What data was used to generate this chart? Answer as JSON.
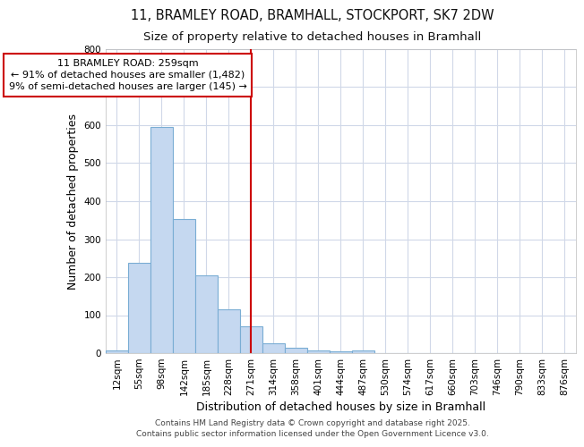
{
  "title_line1": "11, BRAMLEY ROAD, BRAMHALL, STOCKPORT, SK7 2DW",
  "title_line2": "Size of property relative to detached houses in Bramhall",
  "xlabel": "Distribution of detached houses by size in Bramhall",
  "ylabel": "Number of detached properties",
  "bin_labels": [
    "12sqm",
    "55sqm",
    "98sqm",
    "142sqm",
    "185sqm",
    "228sqm",
    "271sqm",
    "314sqm",
    "358sqm",
    "401sqm",
    "444sqm",
    "487sqm",
    "530sqm",
    "574sqm",
    "617sqm",
    "660sqm",
    "703sqm",
    "746sqm",
    "790sqm",
    "833sqm",
    "876sqm"
  ],
  "bar_values": [
    8,
    238,
    595,
    352,
    205,
    115,
    70,
    27,
    13,
    6,
    5,
    8,
    0,
    0,
    0,
    0,
    0,
    0,
    0,
    0,
    0
  ],
  "bar_color": "#c5d8f0",
  "bar_edge_color": "#7aadd4",
  "vline_x": 6,
  "vline_color": "#cc0000",
  "annotation_text": "11 BRAMLEY ROAD: 259sqm\n← 91% of detached houses are smaller (1,482)\n9% of semi-detached houses are larger (145) →",
  "annotation_box_color": "#ffffff",
  "annotation_box_edge": "#cc0000",
  "ylim": [
    0,
    800
  ],
  "yticks": [
    0,
    100,
    200,
    300,
    400,
    500,
    600,
    700,
    800
  ],
  "background_color": "#ffffff",
  "plot_bg_color": "#ffffff",
  "grid_color": "#d0d8e8",
  "footer_line1": "Contains HM Land Registry data © Crown copyright and database right 2025.",
  "footer_line2": "Contains public sector information licensed under the Open Government Licence v3.0.",
  "title_fontsize": 10.5,
  "subtitle_fontsize": 9.5,
  "axis_label_fontsize": 9,
  "tick_fontsize": 7.5,
  "annotation_fontsize": 8,
  "footer_fontsize": 6.5
}
